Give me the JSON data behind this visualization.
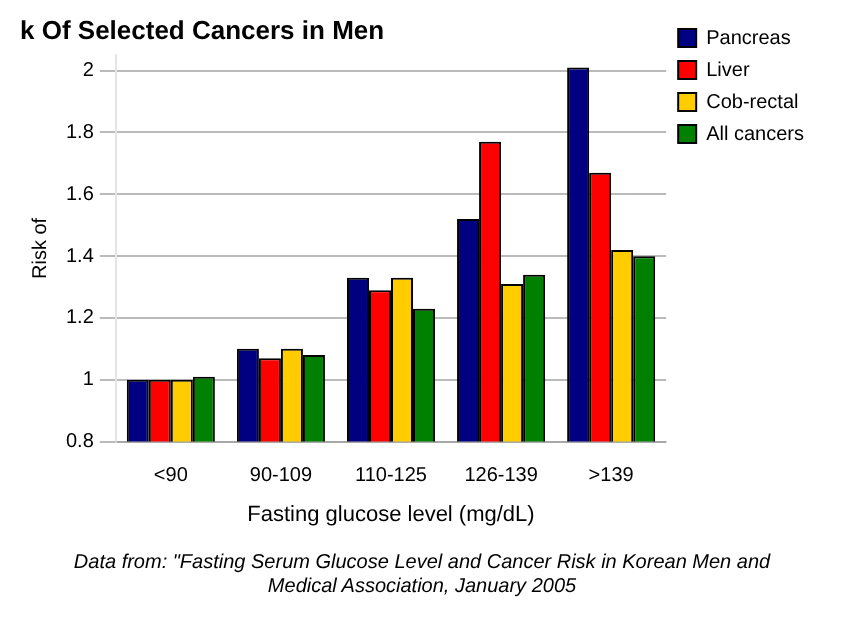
{
  "chart_data": {
    "type": "bar",
    "title": "k Of Selected Cancers in Men",
    "xlabel": "Fasting glucose level (mg/dL)",
    "ylabel": "Risk of",
    "categories": [
      "<90",
      "90-109",
      "110-125",
      "126-139",
      ">139"
    ],
    "series": [
      {
        "name": "Pancreas",
        "color": "#000080",
        "values": [
          1.0,
          1.1,
          1.33,
          1.52,
          2.01
        ]
      },
      {
        "name": "Liver",
        "color": "#ff0000",
        "values": [
          1.0,
          1.07,
          1.29,
          1.77,
          1.67
        ]
      },
      {
        "name": "Cob-rectal",
        "color": "#ffcc00",
        "values": [
          1.0,
          1.1,
          1.33,
          1.31,
          1.42
        ]
      },
      {
        "name": "All cancers",
        "color": "#008000",
        "values": [
          1.01,
          1.08,
          1.23,
          1.34,
          1.4
        ]
      }
    ],
    "ylim": [
      0.8,
      2.05
    ],
    "yticks": [
      0.8,
      1,
      1.2,
      1.4,
      1.6,
      1.8,
      2
    ],
    "grid": "y",
    "legend": "right",
    "annotations": [
      "Data from: \"Fasting Serum Glucose Level and Cancer Risk in Korean Men and",
      "Medical Association, January 2005"
    ]
  }
}
